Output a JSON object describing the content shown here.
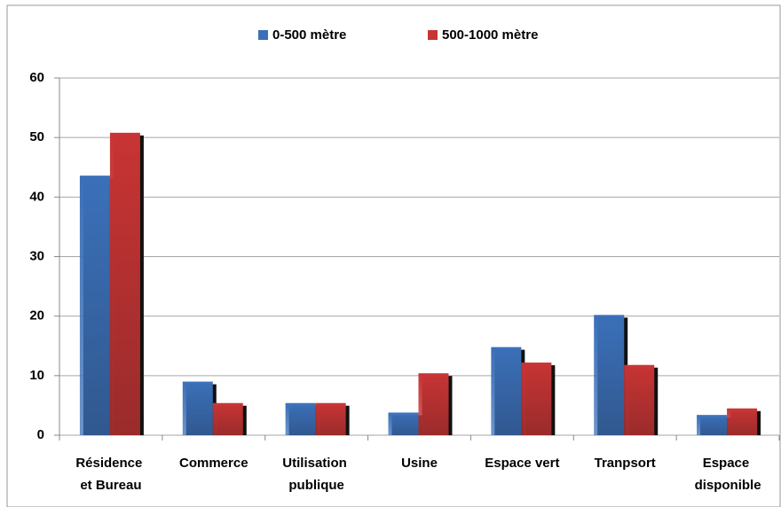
{
  "chart_data": {
    "type": "bar",
    "categories": [
      "Résidence et Bureau",
      "Commerce",
      "Utilisation publique",
      "Usine",
      "Espace vert",
      "Tranpsort",
      "Espace disponible"
    ],
    "series": [
      {
        "name": "0-500 mètre",
        "color": "#3b70b9",
        "values": [
          43.6,
          9,
          5.4,
          3.8,
          14.8,
          20.2,
          3.4
        ]
      },
      {
        "name": "500-1000 mètre",
        "color": "#c83434",
        "values": [
          50.8,
          5.4,
          5.4,
          10.4,
          12.2,
          11.8,
          4.5
        ]
      }
    ],
    "ylim": [
      0,
      60
    ],
    "yticks": [
      0,
      10,
      20,
      30,
      40,
      50,
      60
    ],
    "grid": true,
    "legend": "top"
  }
}
